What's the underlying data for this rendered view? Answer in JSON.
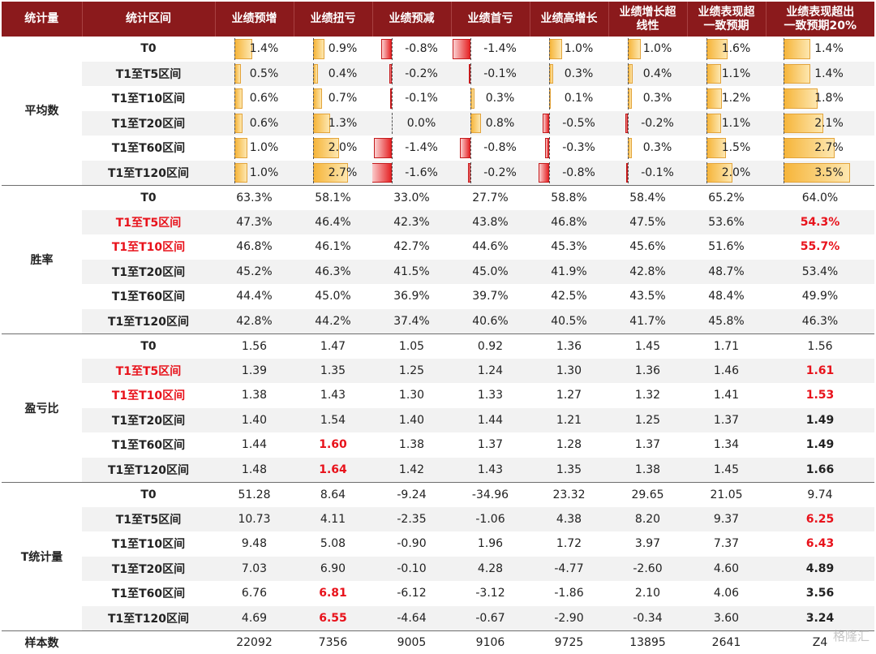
{
  "headers": [
    "统计量",
    "统计区间",
    "业绩预增",
    "业绩扭亏",
    "业绩预减",
    "业绩首亏",
    "业绩高增长",
    "业绩增长超线性",
    "业绩表现超一致预期",
    "业绩表现超出一致预期20%"
  ],
  "header_lines": [
    [
      "统计量"
    ],
    [
      "统计区间"
    ],
    [
      "业绩预增"
    ],
    [
      "业绩扭亏"
    ],
    [
      "业绩预减"
    ],
    [
      "业绩首亏"
    ],
    [
      "业绩高增长"
    ],
    [
      "业绩增长超",
      "线性"
    ],
    [
      "业绩表现超",
      "一致预期"
    ],
    [
      "业绩表现超出",
      "一致预期20%"
    ]
  ],
  "groups": [
    {
      "name": "平均数",
      "type": "bars",
      "rows": [
        {
          "label": "T0",
          "label_red": false,
          "values": [
            1.4,
            0.9,
            -0.8,
            -1.4,
            1.0,
            1.0,
            1.6,
            1.4
          ]
        },
        {
          "label": "T1至T5区间",
          "label_red": false,
          "values": [
            0.5,
            0.4,
            -0.2,
            -0.1,
            0.3,
            0.4,
            1.1,
            1.4
          ]
        },
        {
          "label": "T1至T10区间",
          "label_red": false,
          "values": [
            0.6,
            0.7,
            -0.1,
            0.3,
            0.1,
            0.3,
            1.2,
            1.8
          ]
        },
        {
          "label": "T1至T20区间",
          "label_red": false,
          "values": [
            0.6,
            1.3,
            0.0,
            0.8,
            -0.5,
            -0.2,
            1.1,
            2.1
          ]
        },
        {
          "label": "T1至T60区间",
          "label_red": false,
          "values": [
            1.0,
            2.0,
            -1.4,
            -0.8,
            -0.3,
            0.3,
            1.5,
            2.7
          ]
        },
        {
          "label": "T1至T120区间",
          "label_red": false,
          "values": [
            1.0,
            2.7,
            -1.6,
            -0.2,
            -0.8,
            -0.1,
            2.0,
            3.5
          ]
        }
      ]
    },
    {
      "name": "胜率",
      "type": "text",
      "rows": [
        {
          "label": "T0",
          "label_red": false,
          "cells": [
            "63.3%",
            "58.1%",
            "33.0%",
            "27.7%",
            "58.8%",
            "58.4%",
            "65.2%",
            "64.0%"
          ],
          "styles": [
            "",
            "",
            "",
            "",
            "",
            "",
            "",
            ""
          ]
        },
        {
          "label": "T1至T5区间",
          "label_red": true,
          "cells": [
            "47.3%",
            "46.4%",
            "42.3%",
            "43.8%",
            "46.8%",
            "47.5%",
            "53.6%",
            "54.3%"
          ],
          "styles": [
            "",
            "",
            "",
            "",
            "",
            "",
            "",
            "red"
          ]
        },
        {
          "label": "T1至T10区间",
          "label_red": true,
          "cells": [
            "46.8%",
            "46.1%",
            "42.7%",
            "44.6%",
            "45.3%",
            "45.6%",
            "51.6%",
            "55.7%"
          ],
          "styles": [
            "",
            "",
            "",
            "",
            "",
            "",
            "",
            "red"
          ]
        },
        {
          "label": "T1至T20区间",
          "label_red": false,
          "cells": [
            "45.2%",
            "46.3%",
            "41.5%",
            "45.0%",
            "41.9%",
            "42.8%",
            "48.7%",
            "53.4%"
          ],
          "styles": [
            "",
            "",
            "",
            "",
            "",
            "",
            "",
            ""
          ]
        },
        {
          "label": "T1至T60区间",
          "label_red": false,
          "cells": [
            "44.4%",
            "45.0%",
            "36.9%",
            "39.7%",
            "42.5%",
            "43.5%",
            "48.4%",
            "49.9%"
          ],
          "styles": [
            "",
            "",
            "",
            "",
            "",
            "",
            "",
            ""
          ]
        },
        {
          "label": "T1至T120区间",
          "label_red": false,
          "cells": [
            "42.8%",
            "44.2%",
            "37.4%",
            "40.6%",
            "40.5%",
            "41.7%",
            "45.8%",
            "46.3%"
          ],
          "styles": [
            "",
            "",
            "",
            "",
            "",
            "",
            "",
            ""
          ]
        }
      ]
    },
    {
      "name": "盈亏比",
      "type": "text",
      "rows": [
        {
          "label": "T0",
          "label_red": false,
          "cells": [
            "1.56",
            "1.47",
            "1.05",
            "0.92",
            "1.36",
            "1.45",
            "1.71",
            "1.56"
          ],
          "styles": [
            "",
            "",
            "",
            "",
            "",
            "",
            "",
            ""
          ]
        },
        {
          "label": "T1至T5区间",
          "label_red": true,
          "cells": [
            "1.39",
            "1.35",
            "1.25",
            "1.24",
            "1.30",
            "1.36",
            "1.46",
            "1.61"
          ],
          "styles": [
            "",
            "",
            "",
            "",
            "",
            "",
            "",
            "red"
          ]
        },
        {
          "label": "T1至T10区间",
          "label_red": true,
          "cells": [
            "1.38",
            "1.43",
            "1.30",
            "1.33",
            "1.27",
            "1.32",
            "1.41",
            "1.53"
          ],
          "styles": [
            "",
            "",
            "",
            "",
            "",
            "",
            "",
            "red"
          ]
        },
        {
          "label": "T1至T20区间",
          "label_red": false,
          "cells": [
            "1.40",
            "1.54",
            "1.40",
            "1.44",
            "1.21",
            "1.25",
            "1.37",
            "1.49"
          ],
          "styles": [
            "",
            "",
            "",
            "",
            "",
            "",
            "",
            "bold"
          ]
        },
        {
          "label": "T1至T60区间",
          "label_red": false,
          "cells": [
            "1.44",
            "1.60",
            "1.38",
            "1.37",
            "1.28",
            "1.37",
            "1.34",
            "1.49"
          ],
          "styles": [
            "",
            "red",
            "",
            "",
            "",
            "",
            "",
            "bold"
          ]
        },
        {
          "label": "T1至T120区间",
          "label_red": false,
          "cells": [
            "1.48",
            "1.64",
            "1.42",
            "1.43",
            "1.35",
            "1.38",
            "1.45",
            "1.66"
          ],
          "styles": [
            "",
            "red",
            "",
            "",
            "",
            "",
            "",
            "bold"
          ]
        }
      ]
    },
    {
      "name": "T统计量",
      "type": "text",
      "rows": [
        {
          "label": "T0",
          "label_red": false,
          "cells": [
            "51.28",
            "8.64",
            "-9.24",
            "-34.96",
            "23.32",
            "29.65",
            "21.05",
            "9.74"
          ],
          "styles": [
            "",
            "",
            "",
            "",
            "",
            "",
            "",
            ""
          ]
        },
        {
          "label": "T1至T5区间",
          "label_red": false,
          "cells": [
            "10.73",
            "4.11",
            "-2.35",
            "-1.06",
            "4.38",
            "8.20",
            "9.37",
            "6.25"
          ],
          "styles": [
            "",
            "",
            "",
            "",
            "",
            "",
            "",
            "red"
          ]
        },
        {
          "label": "T1至T10区间",
          "label_red": false,
          "cells": [
            "9.48",
            "5.08",
            "-0.90",
            "1.96",
            "1.72",
            "3.97",
            "7.37",
            "6.43"
          ],
          "styles": [
            "",
            "",
            "",
            "",
            "",
            "",
            "",
            "red"
          ]
        },
        {
          "label": "T1至T20区间",
          "label_red": false,
          "cells": [
            "7.03",
            "6.90",
            "-0.10",
            "4.28",
            "-4.77",
            "-2.60",
            "4.60",
            "4.89"
          ],
          "styles": [
            "",
            "",
            "",
            "",
            "",
            "",
            "",
            "bold"
          ]
        },
        {
          "label": "T1至T60区间",
          "label_red": false,
          "cells": [
            "6.76",
            "6.81",
            "-6.12",
            "-3.12",
            "-1.86",
            "2.10",
            "4.06",
            "3.56"
          ],
          "styles": [
            "",
            "red",
            "",
            "",
            "",
            "",
            "",
            "bold"
          ]
        },
        {
          "label": "T1至T120区间",
          "label_red": false,
          "cells": [
            "4.69",
            "6.55",
            "-4.64",
            "-0.67",
            "-2.90",
            "-0.34",
            "3.60",
            "3.24"
          ],
          "styles": [
            "",
            "red",
            "",
            "",
            "",
            "",
            "",
            "bold"
          ]
        }
      ]
    }
  ],
  "sample_row": {
    "label": "样本数",
    "values": [
      "22092",
      "7356",
      "9005",
      "9106",
      "9725",
      "13895",
      "2641",
      "Z4"
    ]
  },
  "bar_colors": {
    "positive": "#f6b53a",
    "negative": "#e52426"
  },
  "watermark": "格隆汇"
}
